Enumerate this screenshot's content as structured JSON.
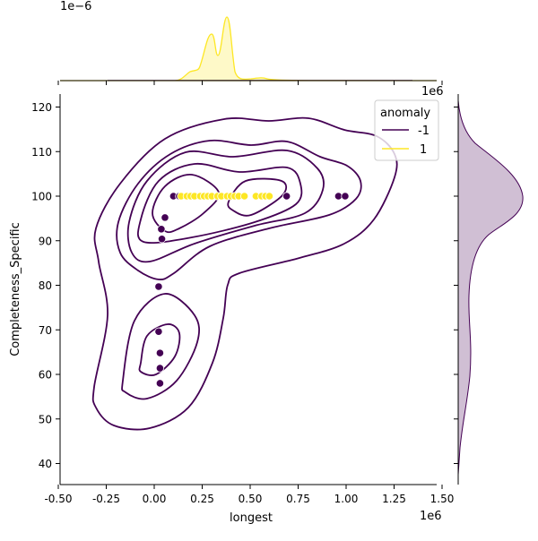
{
  "chart_data": {
    "type": "scatter",
    "kind": "jointplot with KDE contours and marginal KDEs",
    "xlabel": "longest",
    "ylabel": "Completeness_Specific",
    "x_offset_label": "1e6",
    "top_marginal_offset_label": "1e−6",
    "top_marginal_x_offset_label": "1e6",
    "xlim": [
      -0.49,
      1.47
    ],
    "ylim": [
      35.4,
      123
    ],
    "x_ticks": [
      "-0.50",
      "-0.25",
      "0.00",
      "0.25",
      "0.50",
      "0.75",
      "1.00",
      "1.25",
      "1.50"
    ],
    "x_tick_values": [
      -0.5,
      -0.25,
      0,
      0.25,
      0.5,
      0.75,
      1.0,
      1.25,
      1.5
    ],
    "y_ticks": [
      "40",
      "50",
      "60",
      "70",
      "80",
      "90",
      "100",
      "110",
      "120"
    ],
    "y_tick_values": [
      40,
      50,
      60,
      70,
      80,
      90,
      100,
      110,
      120
    ],
    "grid": false,
    "legend": {
      "title": "anomaly",
      "placement": "top-right"
    },
    "series": [
      {
        "name": "-1",
        "color": "#440154",
        "points": [
          [
            0.1,
            100
          ],
          [
            0.13,
            100
          ],
          [
            0.53,
            100
          ],
          [
            0.69,
            100
          ],
          [
            0.96,
            100
          ],
          [
            0.995,
            100
          ],
          [
            0.056,
            95.2
          ],
          [
            0.037,
            92.6
          ],
          [
            0.04,
            90.4
          ],
          [
            0.023,
            79.7
          ],
          [
            0.023,
            69.6
          ],
          [
            0.03,
            64.8
          ],
          [
            0.03,
            61.4
          ],
          [
            0.03,
            58.0
          ]
        ]
      },
      {
        "name": "1",
        "color": "#fde725",
        "points": [
          [
            0.14,
            100
          ],
          [
            0.17,
            100
          ],
          [
            0.19,
            100
          ],
          [
            0.21,
            100
          ],
          [
            0.24,
            100
          ],
          [
            0.26,
            100
          ],
          [
            0.28,
            100
          ],
          [
            0.3,
            100
          ],
          [
            0.33,
            100
          ],
          [
            0.35,
            100
          ],
          [
            0.38,
            100
          ],
          [
            0.4,
            100
          ],
          [
            0.42,
            100
          ],
          [
            0.44,
            100
          ],
          [
            0.47,
            100
          ],
          [
            0.53,
            100
          ],
          [
            0.56,
            100
          ],
          [
            0.58,
            100
          ],
          [
            0.6,
            100
          ]
        ]
      }
    ]
  }
}
